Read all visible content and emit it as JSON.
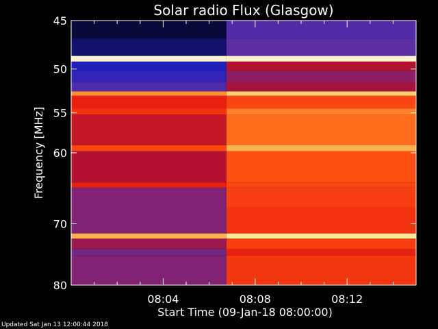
{
  "chart_data": {
    "type": "heatmap",
    "title": "Solar radio Flux (Glasgow)",
    "xlabel": "Start Time (09-Jan-18 08:00:00)",
    "ylabel": "Frequency [MHz]",
    "x_unit": "minutes",
    "xlim": [
      0,
      15
    ],
    "ylim": [
      45,
      80
    ],
    "y_scale": "log",
    "x_ticks": [
      {
        "value": 4,
        "label": "08:04"
      },
      {
        "value": 8,
        "label": "08:08"
      },
      {
        "value": 12,
        "label": "08:12"
      }
    ],
    "y_ticks": [
      {
        "value": 45,
        "label": "45"
      },
      {
        "value": 50,
        "label": "50"
      },
      {
        "value": 55,
        "label": "55"
      },
      {
        "value": 60,
        "label": "60"
      },
      {
        "value": 70,
        "label": "70"
      },
      {
        "value": 80,
        "label": "80"
      }
    ],
    "transition_time": 6.75,
    "colormap": [
      "#050520",
      "#2020c0",
      "#6030a0",
      "#b01030",
      "#e82010",
      "#ff5010",
      "#ff9030",
      "#ffe080",
      "#ffffff"
    ],
    "bands": [
      {
        "f0": 45.0,
        "f1": 46.8,
        "before": 0.02,
        "after": 0.22
      },
      {
        "f0": 46.8,
        "f1": 48.6,
        "before": 0.06,
        "after": 0.24
      },
      {
        "f0": 48.6,
        "f1": 49.2,
        "before": 0.95,
        "after": 0.95
      },
      {
        "f0": 49.2,
        "f1": 50.2,
        "before": 0.12,
        "after": 0.38
      },
      {
        "f0": 50.2,
        "f1": 51.5,
        "before": 0.16,
        "after": 0.32
      },
      {
        "f0": 51.5,
        "f1": 52.5,
        "before": 0.22,
        "after": 0.36
      },
      {
        "f0": 52.5,
        "f1": 53.0,
        "before": 0.75,
        "after": 0.85
      },
      {
        "f0": 53.0,
        "f1": 54.5,
        "before": 0.5,
        "after": 0.6
      },
      {
        "f0": 54.5,
        "f1": 55.2,
        "before": 0.55,
        "after": 0.72
      },
      {
        "f0": 55.2,
        "f1": 59.0,
        "before": 0.42,
        "after": 0.68
      },
      {
        "f0": 59.0,
        "f1": 59.8,
        "before": 0.6,
        "after": 0.8
      },
      {
        "f0": 59.8,
        "f1": 64.0,
        "before": 0.38,
        "after": 0.62
      },
      {
        "f0": 64.0,
        "f1": 64.7,
        "before": 0.5,
        "after": 0.6
      },
      {
        "f0": 64.7,
        "f1": 67.5,
        "before": 0.3,
        "after": 0.58
      },
      {
        "f0": 67.5,
        "f1": 71.5,
        "before": 0.3,
        "after": 0.55
      },
      {
        "f0": 71.5,
        "f1": 72.3,
        "before": 0.8,
        "after": 0.9
      },
      {
        "f0": 72.3,
        "f1": 74.0,
        "before": 0.34,
        "after": 0.58
      },
      {
        "f0": 74.0,
        "f1": 75.0,
        "before": 0.28,
        "after": 0.5
      },
      {
        "f0": 75.0,
        "f1": 80.0,
        "before": 0.3,
        "after": 0.56
      }
    ]
  },
  "footer": {
    "updated_text": "Updated Sat Jan 13 12:00:44 2018"
  }
}
